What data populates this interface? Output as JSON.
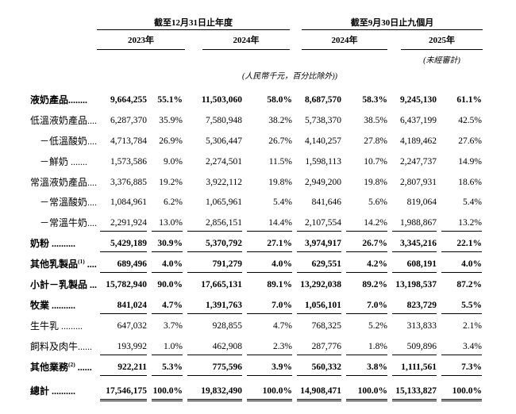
{
  "table": {
    "col_groups": [
      {
        "title": "截至12月31日止年度",
        "years": [
          "2023年",
          "2024年"
        ]
      },
      {
        "title": "截至9月30日止九個月",
        "years": [
          "2024年",
          "2025年"
        ]
      }
    ],
    "unaudited_note": "(未經審計)",
    "unit_note": "(人民幣千元，百分比除外))",
    "rows": [
      {
        "label": "液奶產品",
        "sup": "",
        "dots": "........",
        "indent": 0,
        "bold": true,
        "underline": "none",
        "values": [
          "9,664,255",
          "55.1%",
          "11,503,060",
          "58.0%",
          "8,687,570",
          "58.3%",
          "9,245,130",
          "61.1%"
        ]
      },
      {
        "label": "低溫液奶產品",
        "sup": "",
        "dots": "....",
        "indent": 0,
        "bold": false,
        "underline": "none",
        "values": [
          "6,287,370",
          "35.9%",
          "7,580,948",
          "38.2%",
          "5,738,370",
          "38.5%",
          "6,437,199",
          "42.5%"
        ]
      },
      {
        "label": "－低溫酸奶",
        "sup": "",
        "dots": "....",
        "indent": 1,
        "bold": false,
        "underline": "none",
        "values": [
          "4,713,784",
          "26.9%",
          "5,306,447",
          "26.7%",
          "4,140,257",
          "27.8%",
          "4,189,462",
          "27.6%"
        ]
      },
      {
        "label": "－鮮奶 ",
        "sup": "",
        "dots": ".......",
        "indent": 1,
        "bold": false,
        "underline": "none",
        "values": [
          "1,573,586",
          "9.0%",
          "2,274,501",
          "11.5%",
          "1,598,113",
          "10.7%",
          "2,247,737",
          "14.9%"
        ]
      },
      {
        "label": "常溫液奶產品",
        "sup": "",
        "dots": "....",
        "indent": 0,
        "bold": false,
        "underline": "none",
        "values": [
          "3,376,885",
          "19.2%",
          "3,922,112",
          "19.8%",
          "2,949,200",
          "19.8%",
          "2,807,931",
          "18.6%"
        ]
      },
      {
        "label": "－常溫酸奶",
        "sup": "",
        "dots": "....",
        "indent": 1,
        "bold": false,
        "underline": "none",
        "values": [
          "1,084,961",
          "6.2%",
          "1,065,961",
          "5.4%",
          "841,646",
          "5.6%",
          "819,064",
          "5.4%"
        ]
      },
      {
        "label": "－常溫牛奶",
        "sup": "",
        "dots": "....",
        "indent": 1,
        "bold": false,
        "underline": "single",
        "values": [
          "2,291,924",
          "13.0%",
          "2,856,151",
          "14.4%",
          "2,107,554",
          "14.2%",
          "1,988,867",
          "13.2%"
        ]
      },
      {
        "label": "奶粉 ",
        "sup": "",
        "dots": "..........",
        "indent": 0,
        "bold": true,
        "underline": "single",
        "values": [
          "5,429,189",
          "30.9%",
          "5,370,792",
          "27.1%",
          "3,974,917",
          "26.7%",
          "3,345,216",
          "22.1%"
        ]
      },
      {
        "label": "其他乳製品",
        "sup": "(1)",
        "dots": " ....",
        "indent": 0,
        "bold": true,
        "underline": "single",
        "values": [
          "689,496",
          "4.0%",
          "791,279",
          "4.0%",
          "629,551",
          "4.2%",
          "608,191",
          "4.0%"
        ]
      },
      {
        "label": "小計－乳製品 ",
        "sup": "",
        "dots": "...",
        "indent": 0,
        "bold": true,
        "underline": "none",
        "values": [
          "15,782,940",
          "90.0%",
          "17,665,131",
          "89.1%",
          "13,292,038",
          "89.2%",
          "13,198,537",
          "87.2%"
        ]
      },
      {
        "label": "牧業 ",
        "sup": "",
        "dots": "..........",
        "indent": 0,
        "bold": true,
        "underline": "single",
        "values": [
          "841,024",
          "4.7%",
          "1,391,763",
          "7.0%",
          "1,056,101",
          "7.0%",
          "823,729",
          "5.5%"
        ]
      },
      {
        "label": "生牛乳 ",
        "sup": "",
        "dots": ".........",
        "indent": 0,
        "bold": false,
        "underline": "none",
        "values": [
          "647,032",
          "3.7%",
          "928,855",
          "4.7%",
          "768,325",
          "5.2%",
          "313,833",
          "2.1%"
        ]
      },
      {
        "label": "飼料及肉牛",
        "sup": "",
        "dots": "......",
        "indent": 0,
        "bold": false,
        "underline": "single",
        "values": [
          "193,992",
          "1.0%",
          "462,908",
          "2.3%",
          "287,776",
          "1.8%",
          "509,896",
          "3.4%"
        ]
      },
      {
        "label": "其他業務",
        "sup": "(2)",
        "dots": " ......",
        "indent": 0,
        "bold": true,
        "underline": "single",
        "values": [
          "922,211",
          "5.3%",
          "775,596",
          "3.9%",
          "560,332",
          "3.8%",
          "1,111,561",
          "7.3%"
        ]
      },
      {
        "label": "總計 ",
        "sup": "",
        "dots": "..........",
        "indent": 0,
        "bold": true,
        "underline": "double",
        "values": [
          "17,546,175",
          "100.0%",
          "19,832,490",
          "100.0%",
          "14,908,471",
          "100.0%",
          "15,133,827",
          "100.0%"
        ]
      }
    ]
  }
}
